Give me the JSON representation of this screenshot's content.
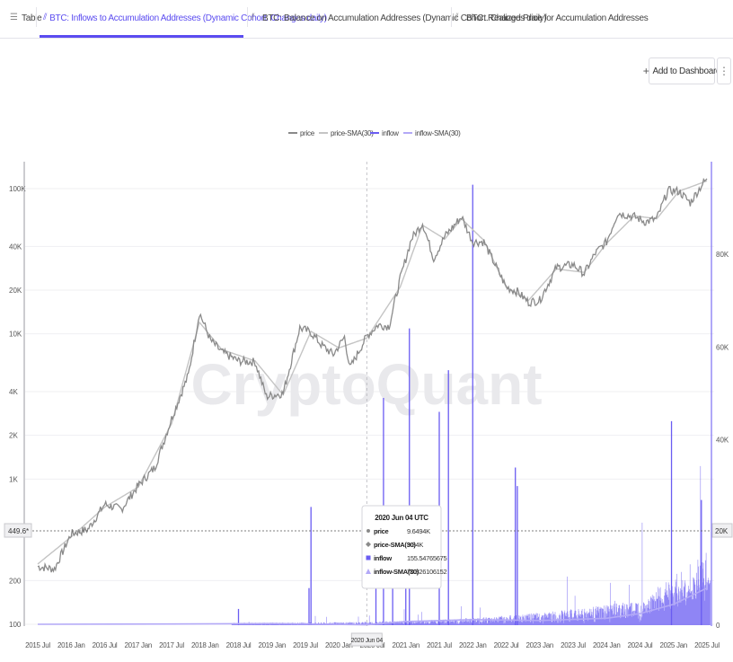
{
  "tabs": [
    {
      "label": "Table",
      "icon": "table-icon",
      "active": false
    },
    {
      "label": "BTC: Inflows to Accumulation Addresses (Dynamic Cohort. Changes daily)",
      "icon": "chart-icon",
      "active": true
    },
    {
      "label": "BTC: Balance on Accumulation Addresses (Dynamic Cohort. Changes daily)",
      "icon": "chart-icon",
      "active": false
    },
    {
      "label": "BTC: Realized Price for Accumulation Addresses",
      "icon": "chart-icon",
      "active": false
    }
  ],
  "toolbar": {
    "add_dashboard_label": "Add to Dashboard",
    "more_label": "⋮"
  },
  "watermark": "CryptoQuant",
  "colors": {
    "accent": "#5b4cf0",
    "price": "#8a8a8a",
    "price_sma": "#c4c4c4",
    "inflow": "#6a5cf2",
    "inflow_sma": "#b3a9f7"
  },
  "tooltip": {
    "title": "2020 Jun 04 UTC",
    "rows": [
      {
        "label": "price",
        "value": "9.6494K",
        "marker": "circle"
      },
      {
        "label": "price-SMA(30)",
        "value": "9.34K",
        "marker": "diamond"
      },
      {
        "label": "inflow",
        "value": "155.54765675",
        "marker": "square"
      },
      {
        "label": "inflow-SMA(30)",
        "value": "70.826106152",
        "marker": "triangle"
      }
    ]
  },
  "crosshair": {
    "x_label": "2020 Jun 04",
    "y_label": "449.6*",
    "y_right_label": "20K"
  },
  "chart_data": {
    "type": "line",
    "legend": [
      "price",
      "price-SMA(30)",
      "inflow",
      "inflow-SMA(30)"
    ],
    "legend_position": "top-center",
    "x_ticks": [
      "2015 Jul",
      "2016 Jan",
      "2016 Jul",
      "2017 Jan",
      "2017 Jul",
      "2018 Jan",
      "2018 Jul",
      "2019 Jan",
      "2019 Jul",
      "2020 Jan",
      "2020 Jul",
      "2021 Jan",
      "2021 Jul",
      "2022 Jan",
      "2022 Jul",
      "2023 Jan",
      "2023 Jul",
      "2024 Jan",
      "2024 Jul",
      "2025 Jan",
      "2025 Jul"
    ],
    "y_left": {
      "scale": "log",
      "ticks": [
        "100",
        "200",
        "1K",
        "2K",
        "4K",
        "10K",
        "20K",
        "40K",
        "100K"
      ],
      "tick_values": [
        100,
        200,
        1000,
        2000,
        4000,
        10000,
        20000,
        40000,
        100000
      ]
    },
    "y_right": {
      "scale": "linear",
      "ticks": [
        "0",
        "20K",
        "40K",
        "60K",
        "80K"
      ],
      "tick_values": [
        0,
        20000,
        40000,
        60000,
        80000
      ]
    },
    "series": [
      {
        "name": "price",
        "x": [
          "2015 Jul",
          "2015 Oct",
          "2016 Jan",
          "2016 Apr",
          "2016 Jul",
          "2016 Oct",
          "2017 Jan",
          "2017 Apr",
          "2017 Jul",
          "2017 Oct",
          "2017 Dec",
          "2018 Feb",
          "2018 Apr",
          "2018 Jul",
          "2018 Oct",
          "2018 Dec",
          "2019 Mar",
          "2019 Jun",
          "2019 Aug",
          "2019 Oct",
          "2019 Dec",
          "2020 Feb",
          "2020 Mar",
          "2020 Jun",
          "2020 Aug",
          "2020 Oct",
          "2020 Dec",
          "2021 Feb",
          "2021 Apr",
          "2021 Jun",
          "2021 Aug",
          "2021 Nov",
          "2022 Jan",
          "2022 Mar",
          "2022 May",
          "2022 Jul",
          "2022 Sep",
          "2022 Nov",
          "2023 Jan",
          "2023 Apr",
          "2023 Jul",
          "2023 Sep",
          "2023 Nov",
          "2024 Jan",
          "2024 Mar",
          "2024 Jun",
          "2024 Aug",
          "2024 Oct",
          "2024 Dec",
          "2025 Feb",
          "2025 Apr",
          "2025 Jun",
          "2025 Jul"
        ],
        "values": [
          250,
          240,
          420,
          450,
          670,
          620,
          900,
          1200,
          2600,
          5200,
          14000,
          9000,
          7500,
          6500,
          6400,
          3700,
          3900,
          11000,
          10200,
          8300,
          7200,
          9500,
          5800,
          9650,
          11500,
          11300,
          24000,
          45000,
          58000,
          33000,
          47000,
          64000,
          43000,
          43000,
          30000,
          21000,
          19500,
          16500,
          17000,
          28500,
          30000,
          26000,
          36000,
          43000,
          68000,
          64000,
          59000,
          62000,
          97000,
          96000,
          80000,
          105000,
          117000
        ]
      },
      {
        "name": "price-SMA(30)",
        "x": [
          "2015 Jul",
          "2016 Jan",
          "2016 Jul",
          "2017 Jan",
          "2017 Jul",
          "2017 Dec",
          "2018 Apr",
          "2018 Oct",
          "2019 Mar",
          "2019 Aug",
          "2020 Jan",
          "2020 Jun",
          "2020 Dec",
          "2021 Apr",
          "2021 Aug",
          "2021 Nov",
          "2022 Mar",
          "2022 Jul",
          "2022 Nov",
          "2023 Apr",
          "2023 Sep",
          "2024 Jan",
          "2024 Jun",
          "2024 Oct",
          "2025 Feb",
          "2025 Jul"
        ],
        "values": [
          260,
          400,
          640,
          880,
          2400,
          12000,
          7800,
          6500,
          3800,
          10400,
          8000,
          9340,
          21000,
          56000,
          45000,
          62000,
          44000,
          21000,
          17000,
          28000,
          26500,
          42000,
          65000,
          62000,
          96000,
          113000
        ]
      },
      {
        "name": "inflow",
        "spikes": [
          {
            "x": "2018 Jul",
            "value": 3500
          },
          {
            "x": "2019 Jul",
            "value": 8000
          },
          {
            "x": "2019 Aug",
            "value": 25500
          },
          {
            "x": "2020 Jul",
            "value": 20000
          },
          {
            "x": "2020 Sep",
            "value": 49000
          },
          {
            "x": "2020 Oct",
            "value": 23000
          },
          {
            "x": "2021 Jan",
            "value": 21000
          },
          {
            "x": "2021 Jan",
            "value": 64000
          },
          {
            "x": "2021 Jul",
            "value": 46000
          },
          {
            "x": "2021 Aug",
            "value": 55000
          },
          {
            "x": "2022 Jan",
            "value": 95000
          },
          {
            "x": "2022 Aug",
            "value": 34000
          },
          {
            "x": "2022 Sep",
            "value": 30000
          },
          {
            "x": "2024 Dec",
            "value": 44000
          },
          {
            "x": "2025 Jun",
            "value": 27000
          }
        ]
      },
      {
        "name": "inflow-SMA(30)",
        "x": [
          "2015 Jul",
          "2017 Jul",
          "2019 Jan",
          "2020 Jun",
          "2021 Jan",
          "2022 Jan",
          "2023 Jan",
          "2024 Jan",
          "2024 Jul",
          "2025 Jan",
          "2025 Jul"
        ],
        "values": [
          200,
          250,
          350,
          71,
          800,
          1200,
          1000,
          1500,
          2500,
          4500,
          8000
        ]
      }
    ]
  }
}
